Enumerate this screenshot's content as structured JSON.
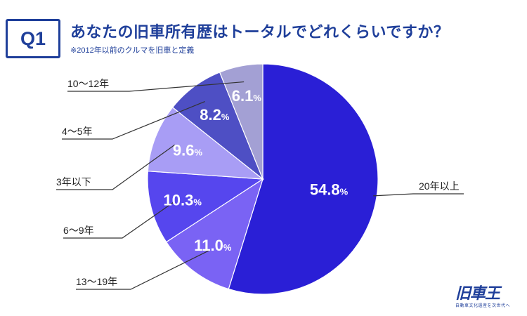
{
  "header": {
    "badge": "Q1",
    "title": "あなたの旧車所有歴はトータルでどれくらいですか？",
    "subtitle": "※2012年以前のクルマを旧車と定義"
  },
  "logo": {
    "text": "旧車王",
    "tagline": "自動車文化遺産を次世代へ"
  },
  "chart_data": {
    "type": "pie",
    "title": "あなたの旧車所有歴はトータルでどれくらいですか？",
    "unit": "%",
    "start": "12 o'clock",
    "direction": "clockwise",
    "slices": [
      {
        "label": "20年以上",
        "value": 54.8,
        "value_text": "54.8",
        "color": "#2a1fd6"
      },
      {
        "label": "13〜19年",
        "value": 11.0,
        "value_text": "11.0",
        "color": "#7a63f4"
      },
      {
        "label": "6〜9年",
        "value": 10.3,
        "value_text": "10.3",
        "color": "#5646ee"
      },
      {
        "label": "3年以下",
        "value": 9.6,
        "value_text": "9.6",
        "color": "#a89df5"
      },
      {
        "label": "4〜5年",
        "value": 8.2,
        "value_text": "8.2",
        "color": "#4e4fc4"
      },
      {
        "label": "10〜12年",
        "value": 6.1,
        "value_text": "6.1",
        "color": "#a3a0d4"
      }
    ]
  }
}
